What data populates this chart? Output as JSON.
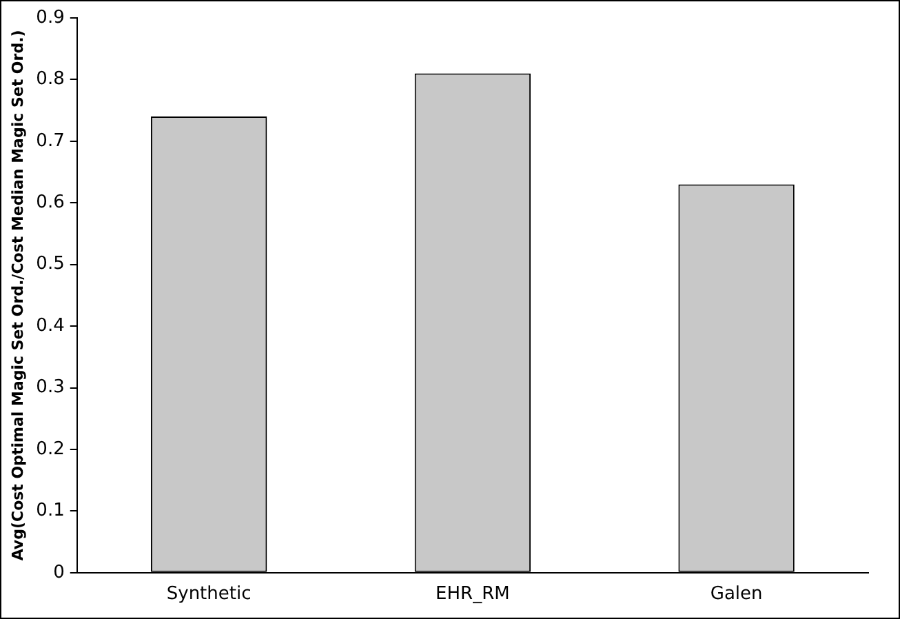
{
  "chart_data": {
    "type": "bar",
    "ylabel": "Avg(Cost Optimal Magic Set Ord./Cost Median Magic Set Ord.)",
    "categories": [
      "Synthetic",
      "EHR_RM",
      "Galen"
    ],
    "values": [
      0.74,
      0.81,
      0.63
    ],
    "color": "#c8c8c8",
    "ylim": [
      0,
      0.9
    ],
    "yticks": [
      0,
      0.1,
      0.2,
      0.3,
      0.4,
      0.5,
      0.6,
      0.7,
      0.8,
      0.9
    ],
    "grid": false,
    "legend": false
  }
}
